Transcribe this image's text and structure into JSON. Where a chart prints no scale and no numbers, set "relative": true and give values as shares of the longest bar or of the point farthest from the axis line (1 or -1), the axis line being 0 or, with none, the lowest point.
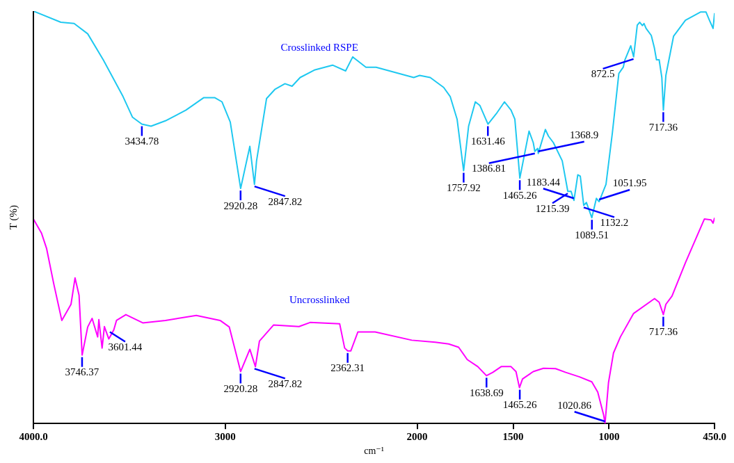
{
  "chart_data": {
    "type": "line",
    "xlabel": "cm⁻¹",
    "ylabel": "T (%)",
    "xlim": [
      4000,
      450
    ],
    "xticks": [
      {
        "value": 4000,
        "label": "4000.0"
      },
      3000,
      2000,
      1500,
      1000,
      {
        "value": 450,
        "label": "450.0"
      }
    ],
    "relative": true,
    "legend": false,
    "grid": false,
    "tick_labels": "x",
    "marker": "none",
    "line_style": "solid",
    "series": [
      {
        "name": "Crosslinked RSPE",
        "color": "#1ec8f0",
        "x": [
          4000,
          3857,
          3788,
          3717,
          3636,
          3533,
          3484,
          3435,
          3387,
          3312,
          3205,
          3113,
          3054,
          3017,
          2974,
          2920,
          2872,
          2848,
          2837,
          2785,
          2742,
          2689,
          2652,
          2610,
          2536,
          2441,
          2373,
          2336,
          2267,
          2214,
          2018,
          1987,
          1932,
          1862,
          1828,
          1792,
          1758,
          1732,
          1697,
          1673,
          1631,
          1588,
          1545,
          1511,
          1491,
          1465,
          1417,
          1395,
          1387,
          1372,
          1369,
          1332,
          1316,
          1290,
          1244,
          1215,
          1198,
          1183,
          1163,
          1150,
          1132,
          1118,
          1090,
          1066,
          1052,
          1016,
          983,
          949,
          926,
          918,
          887,
          872,
          853,
          840,
          826,
          818,
          807,
          780,
          764,
          753,
          739,
          725,
          717,
          704,
          664,
          602,
          522,
          495,
          477,
          458,
          450
        ],
        "values": [
          1.0,
          0.973,
          0.97,
          0.945,
          0.882,
          0.793,
          0.743,
          0.726,
          0.721,
          0.734,
          0.76,
          0.79,
          0.79,
          0.78,
          0.731,
          0.57,
          0.672,
          0.58,
          0.637,
          0.788,
          0.81,
          0.824,
          0.818,
          0.839,
          0.857,
          0.869,
          0.855,
          0.889,
          0.864,
          0.864,
          0.839,
          0.844,
          0.839,
          0.815,
          0.793,
          0.738,
          0.613,
          0.721,
          0.78,
          0.771,
          0.726,
          0.751,
          0.78,
          0.76,
          0.738,
          0.595,
          0.709,
          0.681,
          0.66,
          0.667,
          0.655,
          0.713,
          0.697,
          0.681,
          0.637,
          0.563,
          0.563,
          0.541,
          0.603,
          0.6,
          0.529,
          0.536,
          0.499,
          0.546,
          0.538,
          0.58,
          0.704,
          0.849,
          0.864,
          0.881,
          0.916,
          0.889,
          0.966,
          0.973,
          0.965,
          0.97,
          0.958,
          0.941,
          0.911,
          0.882,
          0.882,
          0.839,
          0.76,
          0.844,
          0.939,
          0.978,
          0.998,
          0.998,
          0.978,
          0.958,
          0.995
        ]
      },
      {
        "name": "Uncrosslinked",
        "color": "#ff00ff",
        "x": [
          4000,
          3958,
          3931,
          3894,
          3852,
          3804,
          3783,
          3762,
          3746,
          3717,
          3694,
          3665,
          3659,
          3642,
          3630,
          3607,
          3581,
          3567,
          3518,
          3430,
          3312,
          3151,
          3027,
          2979,
          2920,
          2872,
          2843,
          2822,
          2748,
          2616,
          2558,
          2404,
          2378,
          2362,
          2346,
          2309,
          2219,
          2028,
          1906,
          1836,
          1784,
          1739,
          1684,
          1639,
          1606,
          1562,
          1511,
          1485,
          1467,
          1451,
          1395,
          1342,
          1279,
          1226,
          1154,
          1090,
          1059,
          1028,
          1021,
          1003,
          977,
          941,
          872,
          763,
          739,
          717,
          704,
          672,
          602,
          503,
          469,
          458,
          450
        ],
        "values": [
          0.496,
          0.462,
          0.424,
          0.339,
          0.25,
          0.289,
          0.353,
          0.311,
          0.166,
          0.234,
          0.255,
          0.21,
          0.252,
          0.183,
          0.235,
          0.205,
          0.227,
          0.25,
          0.264,
          0.244,
          0.25,
          0.262,
          0.25,
          0.234,
          0.126,
          0.18,
          0.138,
          0.2,
          0.239,
          0.235,
          0.245,
          0.242,
          0.183,
          0.176,
          0.176,
          0.222,
          0.222,
          0.202,
          0.197,
          0.193,
          0.185,
          0.155,
          0.138,
          0.116,
          0.124,
          0.138,
          0.138,
          0.126,
          0.087,
          0.108,
          0.126,
          0.134,
          0.133,
          0.124,
          0.113,
          0.101,
          0.076,
          0.02,
          0,
          0.099,
          0.171,
          0.21,
          0.267,
          0.303,
          0.294,
          0.264,
          0.289,
          0.309,
          0.39,
          0.496,
          0.494,
          0.486,
          0.499
        ]
      }
    ],
    "annotations": [
      {
        "text": "3434.78",
        "x": 3434.78,
        "y": 0.726
      },
      {
        "text": "2920.28",
        "x": 2920.28,
        "y": 0.57
      },
      {
        "text": "2847.82",
        "x": 2847.82,
        "y": 0.58
      },
      {
        "text": "1757.92",
        "x": 1757.92,
        "y": 0.613
      },
      {
        "text": "1631.46",
        "x": 1631.46,
        "y": 0.726
      },
      {
        "text": "1465.26",
        "x": 1465.26,
        "y": 0.595
      },
      {
        "text": "1386.81",
        "x": 1386.81,
        "y": 0.66
      },
      {
        "text": "1368.9",
        "x": 1368.9,
        "y": 0.655
      },
      {
        "text": "1215.39",
        "x": 1215.39,
        "y": 0.563
      },
      {
        "text": "1183.44",
        "x": 1183.44,
        "y": 0.541
      },
      {
        "text": "1132.2",
        "x": 1132.2,
        "y": 0.529
      },
      {
        "text": "1089.51",
        "x": 1089.51,
        "y": 0.499
      },
      {
        "text": "1051.95",
        "x": 1051.95,
        "y": 0.538
      },
      {
        "text": "872.5",
        "x": 872.5,
        "y": 0.889
      },
      {
        "text": "717.36",
        "x": 717.36,
        "y": 0.76
      },
      {
        "text": "3746.37",
        "x": 3746.37,
        "y": 0.166
      },
      {
        "text": "3601.44",
        "x": 3601.44,
        "y": 0.227
      },
      {
        "text": "2920.28",
        "x": 2920.28,
        "y": 0.126
      },
      {
        "text": "2847.82",
        "x": 2847.82,
        "y": 0.138
      },
      {
        "text": "2362.31",
        "x": 2362.31,
        "y": 0.176
      },
      {
        "text": "1638.69",
        "x": 1638.69,
        "y": 0.116
      },
      {
        "text": "1465.26",
        "x": 1465.26,
        "y": 0.087
      },
      {
        "text": "1020.86",
        "x": 1020.86,
        "y": 0
      },
      {
        "text": "717.36",
        "x": 717.36,
        "y": 0.264
      }
    ]
  }
}
